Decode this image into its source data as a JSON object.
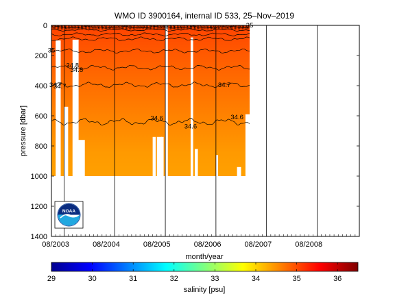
{
  "chart_data": [
    {
      "type": "heatmap",
      "title": "WMO ID 3900164, internal ID 533, 25–Nov–2019",
      "xlabel": "month/year",
      "ylabel": "pressure [dbar]",
      "x_ticks": [
        "08/2003",
        "08/2004",
        "08/2005",
        "08/2006",
        "08/2007",
        "08/2008"
      ],
      "y_ticks": [
        0,
        200,
        400,
        600,
        800,
        1000,
        1200,
        1400
      ],
      "xlim": [
        "2003-07",
        "2009-08"
      ],
      "ylim": [
        1400,
        0
      ],
      "y_reversed": true,
      "grid": "vertical lines at 08/2003 (approx), early 2004, 2005, 2006, 2007, 2008",
      "data_extent": {
        "x": [
          "2003-07",
          "2007-06"
        ],
        "pressure": [
          0,
          1000
        ]
      },
      "colormap_field": "salinity",
      "salinity_by_pressure": [
        {
          "pressure": 0,
          "salinity": 35.2
        },
        {
          "pressure": 100,
          "salinity": 35.15
        },
        {
          "pressure": 200,
          "salinity": 35.05
        },
        {
          "pressure": 300,
          "salinity": 34.95
        },
        {
          "pressure": 400,
          "salinity": 34.85
        },
        {
          "pressure": 500,
          "salinity": 34.75
        },
        {
          "pressure": 600,
          "salinity": 34.68
        },
        {
          "pressure": 700,
          "salinity": 34.6
        },
        {
          "pressure": 800,
          "salinity": 34.55
        },
        {
          "pressure": 1000,
          "salinity": 34.5
        }
      ],
      "contour_labels": [
        {
          "text": "35",
          "x": "2003-07",
          "pressure": 165
        },
        {
          "text": "34.8",
          "x": "2003-12",
          "pressure": 265
        },
        {
          "text": "34.8",
          "x": "2004-01",
          "pressure": 295
        },
        {
          "text": "34.7",
          "x": "2003-08",
          "pressure": 395
        },
        {
          "text": "34.7",
          "x": "2003-09",
          "pressure": 405
        },
        {
          "text": "34.7",
          "x": "2006-12",
          "pressure": 395
        },
        {
          "text": "34.6",
          "x": "2005-08",
          "pressure": 615
        },
        {
          "text": "34.6",
          "x": "2006-04",
          "pressure": 670
        },
        {
          "text": "34.6",
          "x": "2007-03",
          "pressure": 610
        },
        {
          "text": "35",
          "x": "2007-06",
          "pressure": 0
        }
      ]
    },
    {
      "type": "heatmap",
      "role": "colorbar",
      "xlabel": "salinity [psu]",
      "range": [
        29,
        36.5
      ],
      "ticks": [
        29,
        30,
        31,
        32,
        33,
        34,
        35,
        36
      ]
    }
  ],
  "logo": {
    "text": "NOAA"
  }
}
